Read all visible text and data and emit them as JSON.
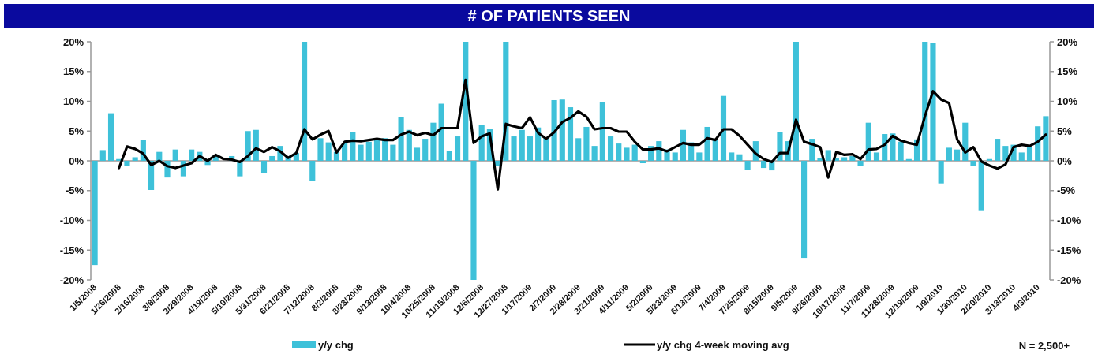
{
  "chart_data": {
    "type": "bar",
    "title": "# OF PATIENTS SEEN",
    "categories": [
      "1/5/2008",
      null,
      null,
      "1/26/2008",
      null,
      null,
      "2/16/2008",
      null,
      null,
      "3/8/2008",
      null,
      null,
      "3/29/2008",
      null,
      null,
      "4/19/2008",
      null,
      null,
      "5/10/2008",
      null,
      null,
      "5/31/2008",
      null,
      null,
      "6/21/2008",
      null,
      null,
      "7/12/2008",
      null,
      null,
      "8/2/2008",
      null,
      null,
      "8/23/2008",
      null,
      null,
      "9/13/2008",
      null,
      null,
      "10/4/2008",
      null,
      null,
      "10/25/2008",
      null,
      null,
      "11/15/2008",
      null,
      null,
      "12/6/2008",
      null,
      null,
      "12/27/2008",
      null,
      null,
      "1/17/2009",
      null,
      null,
      "2/7/2009",
      null,
      null,
      "2/28/2009",
      null,
      null,
      "3/21/2009",
      null,
      null,
      "4/11/2009",
      null,
      null,
      "5/2/2009",
      null,
      null,
      "5/23/2009",
      null,
      null,
      "6/13/2009",
      null,
      null,
      "7/4/2009",
      null,
      null,
      "7/25/2009",
      null,
      null,
      "8/15/2009",
      null,
      null,
      "9/5/2009",
      null,
      null,
      "9/26/2009",
      null,
      null,
      "10/17/2009",
      null,
      null,
      "11/7/2009",
      null,
      null,
      "11/28/2009",
      null,
      null,
      "12/19/2009",
      null,
      null,
      "1/9/2010",
      null,
      null,
      "1/30/2010",
      null,
      null,
      "2/20/2010",
      null,
      null,
      "3/13/2010",
      null,
      null,
      "4/3/2010",
      null
    ],
    "series": [
      {
        "name": "y/y chg",
        "color": "#3ec1d9",
        "values": [
          -17.5,
          1.8,
          8.0,
          0.3,
          -0.9,
          0.6,
          3.5,
          -4.9,
          1.5,
          -2.8,
          1.9,
          -2.6,
          1.9,
          1.5,
          -0.7,
          1.0,
          null,
          0.8,
          -2.6,
          5.0,
          5.2,
          -2.0,
          0.8,
          2.5,
          0.7,
          1.3,
          20,
          -3.4,
          3.8,
          3.1,
          1.5,
          3.0,
          4.9,
          2.7,
          3.2,
          3.7,
          3.8,
          2.7,
          7.3,
          5.2,
          2.2,
          3.7,
          6.4,
          9.6,
          1.6,
          4.1,
          20,
          -20,
          6.0,
          5.4,
          -0.8,
          20,
          4.1,
          5.2,
          4.1,
          5.6,
          3.8,
          10.2,
          10.3,
          9.0,
          3.8,
          5.7,
          2.5,
          9.8,
          4.1,
          2.9,
          2.2,
          2.7,
          -0.4,
          2.5,
          3.3,
          1.9,
          1.4,
          5.2,
          3.1,
          1.4,
          5.7,
          3.6,
          10.9,
          1.4,
          1.1,
          -1.5,
          3.3,
          -1.2,
          -1.6,
          4.9,
          3.3,
          20,
          -16.3,
          3.7,
          0.4,
          1.8,
          0.4,
          0.6,
          0.8,
          -0.9,
          6.4,
          1.4,
          4.5,
          4.6,
          3.2,
          0.3,
          3.6,
          20,
          19.8,
          -3.8,
          2.2,
          1.9,
          6.4,
          -0.9,
          -8.3,
          0.3,
          3.7,
          2.5,
          2.7,
          1.4,
          2.3,
          5.8,
          7.5
        ]
      },
      {
        "name": "y/y chg 4-week moving avg",
        "type": "line",
        "color": "#000000",
        "values": [
          null,
          null,
          null,
          -1.2,
          2.4,
          2.0,
          1.2,
          -0.7,
          0,
          -0.9,
          -1.2,
          -0.8,
          -0.4,
          0.8,
          0,
          1.0,
          0.3,
          0.2,
          -0.2,
          0.8,
          2.1,
          1.5,
          2.3,
          1.6,
          0.5,
          1.3,
          5.3,
          3.6,
          4.4,
          5.0,
          1.4,
          3.2,
          3.4,
          3.3,
          3.5,
          3.7,
          3.5,
          3.5,
          4.4,
          4.9,
          4.3,
          4.7,
          4.3,
          5.5,
          5.5,
          5.5,
          13.6,
          3.0,
          4.1,
          4.6,
          -4.8,
          6.2,
          5.8,
          5.5,
          7.3,
          4.7,
          3.7,
          4.8,
          6.5,
          7.2,
          8.3,
          7.4,
          5.3,
          5.5,
          5.5,
          4.9,
          4.9,
          3.2,
          1.9,
          1.9,
          2.1,
          1.6,
          2.3,
          3.0,
          2.7,
          2.7,
          3.8,
          3.5,
          5.3,
          5.3,
          4.2,
          2.7,
          1.2,
          0.3,
          -0.2,
          1.3,
          1.3,
          6.9,
          3.2,
          2.8,
          2.3,
          -2.8,
          1.5,
          1.0,
          1.1,
          0.3,
          1.9,
          2.0,
          2.7,
          4.2,
          3.4,
          3.0,
          2.7,
          7.5,
          11.7,
          10.3,
          9.7,
          3.6,
          1.4,
          2.3,
          -0.1,
          -0.8,
          -1.3,
          -0.6,
          2.3,
          2.7,
          2.5,
          3.2,
          4.4
        ]
      }
    ],
    "ylim": [
      -20,
      20
    ],
    "yticks": [
      {
        "value": -20,
        "label": "-20%"
      },
      {
        "value": -15,
        "label": "-15%"
      },
      {
        "value": -10,
        "label": "-10%"
      },
      {
        "value": -5,
        "label": "-5%"
      },
      {
        "value": 0,
        "label": "0%"
      },
      {
        "value": 5,
        "label": "5%"
      },
      {
        "value": 10,
        "label": "10%"
      },
      {
        "value": 15,
        "label": "15%"
      },
      {
        "value": 20,
        "label": "20%"
      }
    ],
    "y2lim": [
      -20,
      20
    ],
    "y2ticks": [
      {
        "value": -20,
        "label": "-20%"
      },
      {
        "value": -15,
        "label": "-15%"
      },
      {
        "value": -10,
        "label": "-10%"
      },
      {
        "value": -5,
        "label": "-5%"
      },
      {
        "value": 0,
        "label": "0%"
      },
      {
        "value": 5,
        "label": "5%"
      },
      {
        "value": 10,
        "label": "10%"
      },
      {
        "value": 15,
        "label": "15%"
      },
      {
        "value": 20,
        "label": "20%"
      }
    ],
    "legend": "bottom",
    "line_style": "solid",
    "annotations": [
      "N = 2,500+"
    ]
  }
}
